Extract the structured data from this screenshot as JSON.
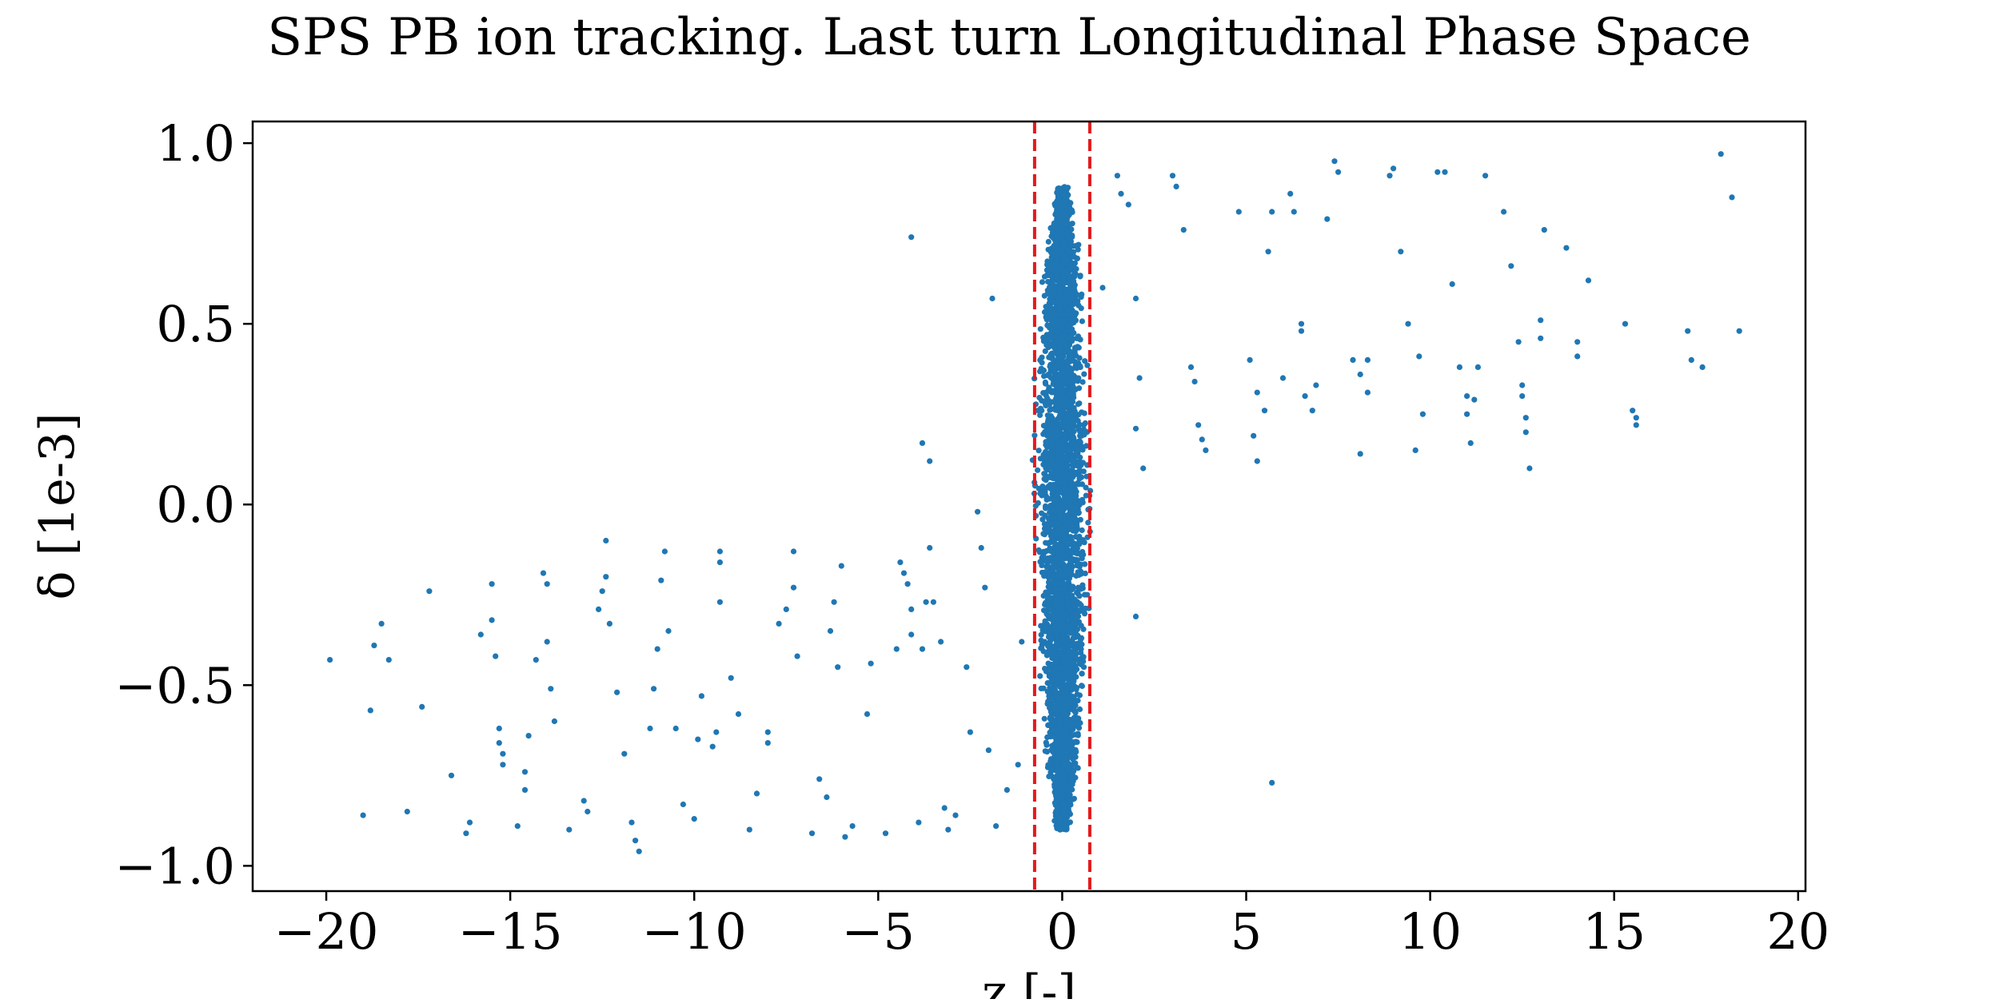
{
  "chart_data": {
    "type": "scatter",
    "title": "SPS PB ion tracking. Last turn Longitudinal Phase Space",
    "xlabel": "z [-]",
    "ylabel": "δ [1e-3]",
    "xlim": [
      -22.0,
      20.2
    ],
    "ylim": [
      -1.07,
      1.06
    ],
    "xticks": [
      -20,
      -15,
      -10,
      -5,
      0,
      5,
      10,
      15,
      20
    ],
    "yticks": [
      -1.0,
      -0.5,
      0.0,
      0.5,
      1.0
    ],
    "xtick_labels": [
      "−20",
      "−15",
      "−10",
      "−5",
      "0",
      "5",
      "10",
      "15",
      "20"
    ],
    "ytick_labels": [
      "−1.0",
      "−0.5",
      "0.0",
      "0.5",
      "1.0"
    ],
    "grid": false,
    "marker_color": "#1f77b4",
    "reference_lines": {
      "orientation": "vertical",
      "style": "dashed",
      "color": "#e31a1c",
      "x": [
        -0.75,
        0.75
      ]
    },
    "core_bunch": {
      "x_mean": 0.0,
      "x_halfwidth": 0.55,
      "y_min": -0.9,
      "y_max": 0.88
    },
    "series": [
      {
        "points": [
          [
            -19.9,
            -0.43
          ],
          [
            -19.0,
            -0.86
          ],
          [
            -18.8,
            -0.57
          ],
          [
            -18.7,
            -0.39
          ],
          [
            -18.5,
            -0.33
          ],
          [
            -18.3,
            -0.43
          ],
          [
            -17.8,
            -0.85
          ],
          [
            -17.4,
            -0.56
          ],
          [
            -17.2,
            -0.24
          ],
          [
            -16.6,
            -0.75
          ],
          [
            -16.2,
            -0.91
          ],
          [
            -16.1,
            -0.88
          ],
          [
            -15.8,
            -0.36
          ],
          [
            -15.5,
            -0.22
          ],
          [
            -15.5,
            -0.32
          ],
          [
            -15.4,
            -0.42
          ],
          [
            -15.3,
            -0.62
          ],
          [
            -15.3,
            -0.66
          ],
          [
            -15.2,
            -0.69
          ],
          [
            -15.2,
            -0.72
          ],
          [
            -14.8,
            -0.89
          ],
          [
            -14.6,
            -0.79
          ],
          [
            -14.6,
            -0.74
          ],
          [
            -14.5,
            -0.64
          ],
          [
            -14.3,
            -0.43
          ],
          [
            -14.1,
            -0.19
          ],
          [
            -14.0,
            -0.22
          ],
          [
            -14.0,
            -0.38
          ],
          [
            -13.9,
            -0.51
          ],
          [
            -13.8,
            -0.6
          ],
          [
            -13.4,
            -0.9
          ],
          [
            -13.0,
            -0.82
          ],
          [
            -12.9,
            -0.85
          ],
          [
            -12.6,
            -0.29
          ],
          [
            -12.5,
            -0.24
          ],
          [
            -12.4,
            -0.2
          ],
          [
            -12.4,
            -0.1
          ],
          [
            -12.3,
            -0.33
          ],
          [
            -12.1,
            -0.52
          ],
          [
            -11.9,
            -0.69
          ],
          [
            -11.7,
            -0.88
          ],
          [
            -11.6,
            -0.93
          ],
          [
            -11.5,
            -0.96
          ],
          [
            -11.2,
            -0.62
          ],
          [
            -11.1,
            -0.51
          ],
          [
            -11.0,
            -0.4
          ],
          [
            -10.9,
            -0.21
          ],
          [
            -10.8,
            -0.13
          ],
          [
            -10.7,
            -0.35
          ],
          [
            -10.5,
            -0.62
          ],
          [
            -10.3,
            -0.83
          ],
          [
            -10.0,
            -0.87
          ],
          [
            -9.9,
            -0.65
          ],
          [
            -9.8,
            -0.53
          ],
          [
            -9.5,
            -0.67
          ],
          [
            -9.4,
            -0.63
          ],
          [
            -9.3,
            -0.27
          ],
          [
            -9.3,
            -0.16
          ],
          [
            -9.3,
            -0.13
          ],
          [
            -9.0,
            -0.48
          ],
          [
            -8.8,
            -0.58
          ],
          [
            -8.5,
            -0.9
          ],
          [
            -8.3,
            -0.8
          ],
          [
            -8.0,
            -0.63
          ],
          [
            -8.0,
            -0.66
          ],
          [
            -7.7,
            -0.33
          ],
          [
            -7.5,
            -0.29
          ],
          [
            -7.3,
            -0.23
          ],
          [
            -7.3,
            -0.13
          ],
          [
            -7.2,
            -0.42
          ],
          [
            -6.8,
            -0.91
          ],
          [
            -6.6,
            -0.76
          ],
          [
            -6.4,
            -0.81
          ],
          [
            -6.3,
            -0.35
          ],
          [
            -6.2,
            -0.27
          ],
          [
            -6.1,
            -0.45
          ],
          [
            -6.0,
            -0.17
          ],
          [
            -5.9,
            -0.92
          ],
          [
            -5.7,
            -0.89
          ],
          [
            -5.3,
            -0.58
          ],
          [
            -5.2,
            -0.44
          ],
          [
            -4.8,
            -0.91
          ],
          [
            -4.5,
            -0.4
          ],
          [
            -4.4,
            -0.16
          ],
          [
            -4.3,
            -0.19
          ],
          [
            -4.2,
            -0.22
          ],
          [
            -4.1,
            -0.36
          ],
          [
            -4.1,
            -0.29
          ],
          [
            -4.1,
            0.74
          ],
          [
            -3.9,
            -0.88
          ],
          [
            -3.8,
            0.17
          ],
          [
            -3.8,
            -0.4
          ],
          [
            -3.7,
            -0.27
          ],
          [
            -3.6,
            0.12
          ],
          [
            -3.6,
            -0.12
          ],
          [
            -3.5,
            -0.27
          ],
          [
            -3.3,
            -0.38
          ],
          [
            -3.2,
            -0.84
          ],
          [
            -3.1,
            -0.9
          ],
          [
            -2.9,
            -0.86
          ],
          [
            -2.6,
            -0.45
          ],
          [
            -2.5,
            -0.63
          ],
          [
            -2.3,
            -0.02
          ],
          [
            -2.2,
            -0.12
          ],
          [
            -2.1,
            -0.23
          ],
          [
            -2.0,
            -0.68
          ],
          [
            -1.9,
            0.57
          ],
          [
            -1.8,
            -0.89
          ],
          [
            -1.5,
            -0.79
          ],
          [
            -1.2,
            -0.72
          ],
          [
            -1.1,
            -0.38
          ],
          [
            1.1,
            0.6
          ],
          [
            1.5,
            0.91
          ],
          [
            1.6,
            0.86
          ],
          [
            1.8,
            0.83
          ],
          [
            2.0,
            0.57
          ],
          [
            2.0,
            0.21
          ],
          [
            2.0,
            -0.31
          ],
          [
            2.1,
            0.35
          ],
          [
            2.2,
            0.1
          ],
          [
            3.0,
            0.91
          ],
          [
            3.1,
            0.88
          ],
          [
            3.3,
            0.76
          ],
          [
            3.5,
            0.38
          ],
          [
            3.6,
            0.34
          ],
          [
            3.7,
            0.22
          ],
          [
            3.8,
            0.18
          ],
          [
            3.9,
            0.15
          ],
          [
            4.8,
            0.81
          ],
          [
            5.1,
            0.4
          ],
          [
            5.2,
            0.19
          ],
          [
            5.3,
            0.12
          ],
          [
            5.3,
            0.31
          ],
          [
            5.5,
            0.26
          ],
          [
            5.6,
            0.7
          ],
          [
            5.7,
            0.81
          ],
          [
            5.7,
            -0.77
          ],
          [
            6.0,
            0.35
          ],
          [
            6.2,
            0.86
          ],
          [
            6.3,
            0.81
          ],
          [
            6.5,
            0.48
          ],
          [
            6.5,
            0.5
          ],
          [
            6.6,
            0.3
          ],
          [
            6.8,
            0.26
          ],
          [
            6.9,
            0.33
          ],
          [
            7.2,
            0.79
          ],
          [
            7.4,
            0.95
          ],
          [
            7.5,
            0.92
          ],
          [
            7.9,
            0.4
          ],
          [
            8.1,
            0.36
          ],
          [
            8.1,
            0.14
          ],
          [
            8.3,
            0.31
          ],
          [
            8.3,
            0.4
          ],
          [
            8.9,
            0.91
          ],
          [
            9.0,
            0.93
          ],
          [
            9.2,
            0.7
          ],
          [
            9.4,
            0.5
          ],
          [
            9.6,
            0.15
          ],
          [
            9.7,
            0.41
          ],
          [
            9.8,
            0.25
          ],
          [
            10.2,
            0.92
          ],
          [
            10.4,
            0.92
          ],
          [
            10.6,
            0.61
          ],
          [
            10.8,
            0.38
          ],
          [
            11.0,
            0.3
          ],
          [
            11.0,
            0.25
          ],
          [
            11.1,
            0.17
          ],
          [
            11.2,
            0.29
          ],
          [
            11.3,
            0.38
          ],
          [
            11.5,
            0.91
          ],
          [
            12.0,
            0.81
          ],
          [
            12.2,
            0.66
          ],
          [
            12.4,
            0.45
          ],
          [
            12.5,
            0.33
          ],
          [
            12.5,
            0.3
          ],
          [
            12.6,
            0.24
          ],
          [
            12.6,
            0.2
          ],
          [
            12.7,
            0.1
          ],
          [
            13.0,
            0.46
          ],
          [
            13.0,
            0.51
          ],
          [
            13.1,
            0.76
          ],
          [
            13.7,
            0.71
          ],
          [
            14.0,
            0.41
          ],
          [
            14.0,
            0.45
          ],
          [
            14.3,
            0.62
          ],
          [
            15.3,
            0.5
          ],
          [
            15.5,
            0.26
          ],
          [
            15.6,
            0.24
          ],
          [
            15.6,
            0.22
          ],
          [
            17.0,
            0.48
          ],
          [
            17.1,
            0.4
          ],
          [
            17.4,
            0.38
          ],
          [
            17.9,
            0.97
          ],
          [
            18.2,
            0.85
          ],
          [
            18.4,
            0.48
          ]
        ]
      }
    ]
  }
}
